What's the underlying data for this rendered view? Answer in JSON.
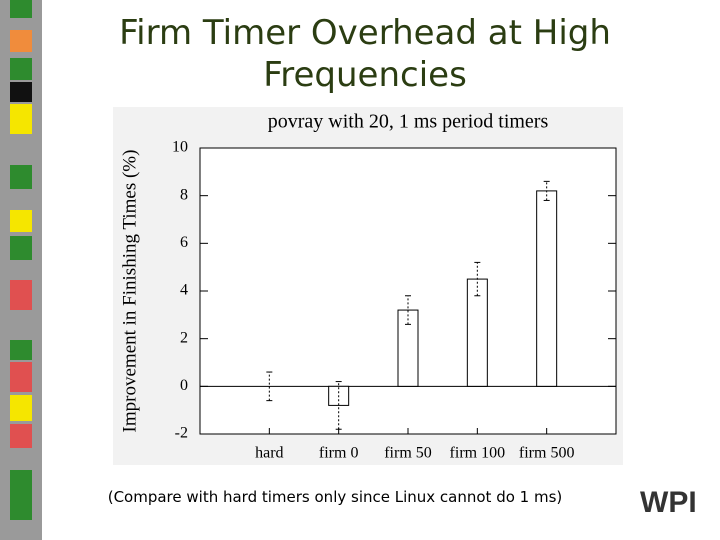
{
  "title": "Firm Timer Overhead at High Frequencies",
  "caption": "(Compare with hard timers only since Linux cannot do 1 ms)",
  "logo": "WPI",
  "chart_data": {
    "type": "bar",
    "title": "povray with 20, 1 ms period timers",
    "y_label": "Improvement in Finishing Times (%)",
    "categories": [
      "hard",
      "firm 0",
      "firm 50",
      "firm 100",
      "firm 500"
    ],
    "values": [
      0,
      -0.8,
      3.2,
      4.5,
      8.2
    ],
    "errors": [
      0.6,
      1.0,
      0.6,
      0.7,
      0.4
    ],
    "color": "#ffffff",
    "ylim": [
      -2,
      10
    ],
    "yticks": [
      -2,
      0,
      2,
      4,
      6,
      8,
      10
    ],
    "grid": false
  }
}
